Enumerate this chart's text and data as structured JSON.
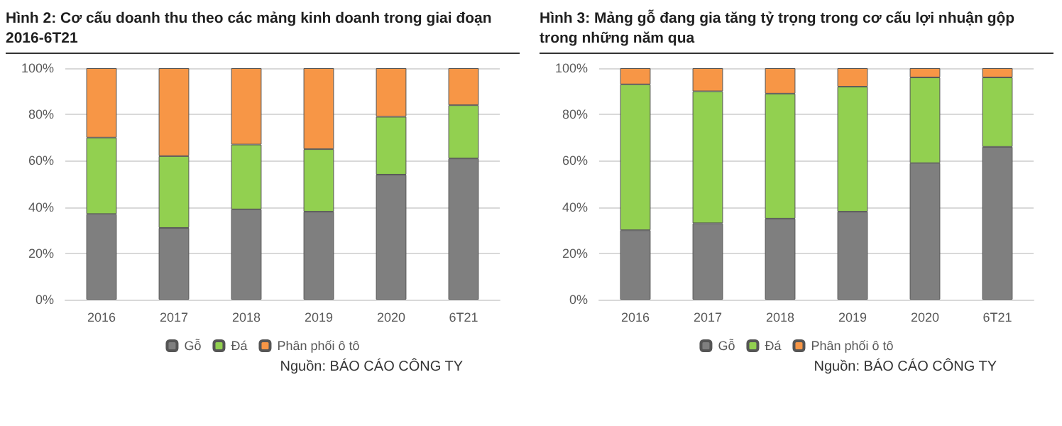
{
  "chart_data": [
    {
      "type": "bar",
      "title": "Hình 2: Cơ cấu doanh thu theo các mảng kinh doanh trong giai đoạn 2016-6T21",
      "categories": [
        "2016",
        "2017",
        "2018",
        "2019",
        "2020",
        "6T21"
      ],
      "stacked": true,
      "series": [
        {
          "name": "Gỗ",
          "color": "#7f7f7f",
          "values": [
            37,
            31,
            39,
            38,
            54,
            61
          ]
        },
        {
          "name": "Đá",
          "color": "#92d050",
          "values": [
            33,
            31,
            28,
            27,
            25,
            23
          ]
        },
        {
          "name": "Phân phối ô tô",
          "color": "#f79646",
          "values": [
            30,
            38,
            33,
            35,
            21,
            16
          ]
        }
      ],
      "ylim": [
        0,
        100
      ],
      "yticks": [
        {
          "value": 0,
          "label": "0%"
        },
        {
          "value": 20,
          "label": "20%"
        },
        {
          "value": 40,
          "label": "40%"
        },
        {
          "value": 60,
          "label": "60%"
        },
        {
          "value": 80,
          "label": "80%"
        },
        {
          "value": 100,
          "label": "100%"
        }
      ],
      "grid": "y",
      "legend": "bottom",
      "annotations": [
        "Nguồn: BÁO CÁO CÔNG TY"
      ]
    },
    {
      "type": "bar",
      "title": "Hình 3: Mảng gỗ đang gia tăng tỷ trọng trong cơ cấu lợi nhuận gộp trong những năm qua",
      "categories": [
        "2016",
        "2017",
        "2018",
        "2019",
        "2020",
        "6T21"
      ],
      "stacked": true,
      "series": [
        {
          "name": "Gỗ",
          "color": "#7f7f7f",
          "values": [
            30,
            33,
            35,
            38,
            59,
            66
          ]
        },
        {
          "name": "Đá",
          "color": "#92d050",
          "values": [
            63,
            57,
            54,
            54,
            37,
            30
          ]
        },
        {
          "name": "Phân phối ô tô",
          "color": "#f79646",
          "values": [
            7,
            10,
            11,
            8,
            4,
            4
          ]
        }
      ],
      "ylim": [
        0,
        100
      ],
      "yticks": [
        {
          "value": 0,
          "label": "0%"
        },
        {
          "value": 20,
          "label": "20%"
        },
        {
          "value": 40,
          "label": "40%"
        },
        {
          "value": 60,
          "label": "60%"
        },
        {
          "value": 80,
          "label": "80%"
        },
        {
          "value": 100,
          "label": "100%"
        }
      ],
      "grid": "y",
      "legend": "bottom",
      "annotations": [
        "Nguồn: BÁO CÁO CÔNG TY"
      ]
    }
  ]
}
